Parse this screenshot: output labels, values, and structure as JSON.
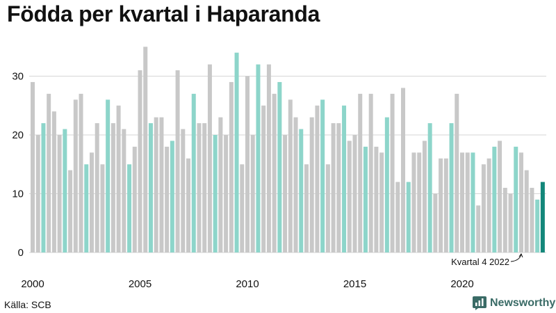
{
  "title": "Födda per kvartal i Haparanda",
  "source": "Källa: SCB",
  "brand": "Newsworthy",
  "colors": {
    "q1_q2_q4": "#c8c8c8",
    "q3": "#8dd5ca",
    "latest": "#13877a",
    "grid": "#d6d6d6",
    "brand": "#3a6b66"
  },
  "chart_data": {
    "type": "bar",
    "first_year": 2000,
    "quarters_per_year": 4,
    "values": [
      29,
      20,
      22,
      27,
      24,
      20,
      21,
      14,
      26,
      27,
      15,
      17,
      22,
      15,
      26,
      22,
      25,
      21,
      15,
      18,
      31,
      35,
      22,
      23,
      23,
      18,
      19,
      31,
      21,
      16,
      27,
      22,
      22,
      32,
      20,
      23,
      20,
      29,
      34,
      15,
      30,
      20,
      32,
      25,
      32,
      27,
      29,
      20,
      26,
      23,
      21,
      15,
      23,
      25,
      26,
      15,
      22,
      22,
      25,
      19,
      20,
      27,
      18,
      27,
      18,
      17,
      23,
      27,
      12,
      28,
      12,
      17,
      17,
      19,
      22,
      10,
      16,
      16,
      22,
      27,
      17,
      17,
      17,
      8,
      15,
      16,
      18,
      19,
      11,
      10,
      18,
      17,
      14,
      11,
      9,
      12
    ],
    "x_tick_labels": [
      "2000",
      "2005",
      "2010",
      "2015",
      "2020"
    ],
    "y_ticks": [
      0,
      10,
      20,
      30
    ],
    "ylim": [
      0,
      36
    ],
    "grid": true,
    "annotation": {
      "label": "Kvartal 4 2022",
      "target_year": 2022,
      "target_quarter": 4
    }
  }
}
